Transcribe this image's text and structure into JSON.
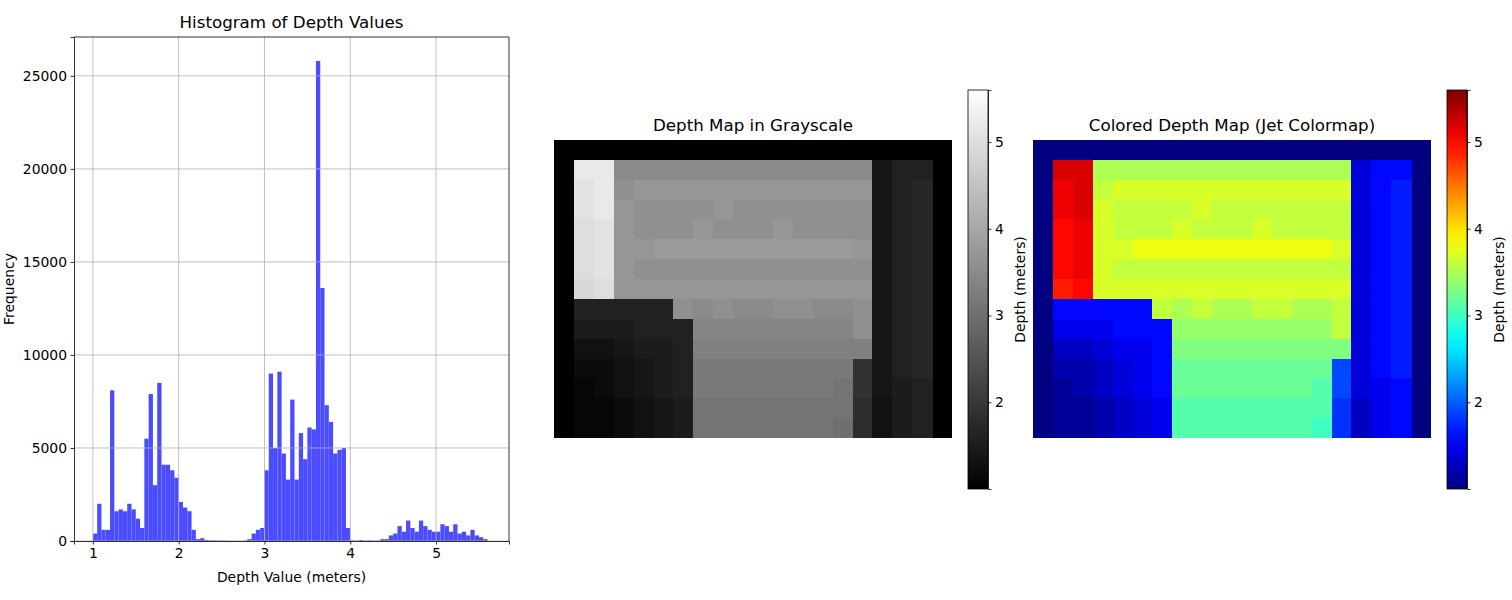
{
  "chart_data": [
    {
      "type": "histogram",
      "title": "Histogram of Depth Values",
      "x_label": "Depth Value (meters)",
      "y_label": "Frequency",
      "bins": [
        1.0,
        1.05,
        1.1,
        1.15,
        1.2,
        1.25,
        1.3,
        1.35,
        1.4,
        1.45,
        1.5,
        1.55,
        1.6,
        1.65,
        1.7,
        1.75,
        1.8,
        1.85,
        1.9,
        1.95,
        2.0,
        2.05,
        2.1,
        2.15,
        2.2,
        2.25,
        2.3,
        2.35,
        2.4,
        2.45,
        2.5,
        2.55,
        2.6,
        2.65,
        2.7,
        2.75,
        2.8,
        2.85,
        2.9,
        2.95,
        3.0,
        3.05,
        3.1,
        3.15,
        3.2,
        3.25,
        3.3,
        3.35,
        3.4,
        3.45,
        3.5,
        3.55,
        3.6,
        3.65,
        3.7,
        3.75,
        3.8,
        3.85,
        3.9,
        3.95,
        4.0,
        4.05,
        4.1,
        4.15,
        4.2,
        4.25,
        4.3,
        4.35,
        4.4,
        4.45,
        4.5,
        4.55,
        4.6,
        4.65,
        4.7,
        4.75,
        4.8,
        4.85,
        4.9,
        4.95,
        5.0,
        5.05,
        5.1,
        5.15,
        5.2,
        5.25,
        5.3,
        5.35,
        5.4,
        5.45,
        5.5,
        5.55,
        5.6
      ],
      "counts": [
        400,
        2000,
        600,
        600,
        8100,
        1600,
        1700,
        1600,
        2000,
        1700,
        1200,
        700,
        5500,
        7900,
        3000,
        8500,
        4100,
        4100,
        3800,
        3400,
        2100,
        1800,
        1600,
        600,
        100,
        150,
        50,
        30,
        30,
        20,
        20,
        10,
        10,
        10,
        0,
        20,
        100,
        400,
        600,
        700,
        3800,
        9000,
        5000,
        9100,
        4700,
        3300,
        7600,
        3300,
        5800,
        4400,
        6100,
        6000,
        25800,
        13600,
        7300,
        6400,
        4700,
        4900,
        5000,
        700,
        30,
        20,
        50,
        20,
        30,
        20,
        20,
        100,
        100,
        300,
        400,
        800,
        500,
        1100,
        700,
        500,
        1100,
        800,
        600,
        500,
        500,
        900,
        800,
        500,
        900,
        400,
        500,
        300,
        600,
        300,
        200,
        100
      ],
      "color": "#4c4cff",
      "xlim": [
        0.78,
        5.85
      ],
      "ylim": [
        0,
        27090
      ],
      "xticks": [
        1,
        2,
        3,
        4,
        5
      ],
      "yticks": [
        0,
        5000,
        10000,
        15000,
        20000,
        25000
      ],
      "grid": true
    },
    {
      "type": "heatmap",
      "title": "Depth Map in Grayscale",
      "color": "gray",
      "tick_labels": false,
      "colorbar_label": "Depth (meters)",
      "colorbar_range": [
        1.0,
        5.6
      ],
      "colorbar_ticks": [
        2,
        3,
        4,
        5
      ],
      "cells": [
        [
          null,
          null,
          null,
          null,
          null,
          null,
          null,
          null,
          null,
          null,
          null,
          null,
          null,
          null,
          null,
          null,
          null,
          null,
          null,
          null
        ],
        [
          null,
          5.2,
          5.2,
          3.5,
          3.5,
          3.5,
          3.5,
          3.5,
          3.5,
          3.5,
          3.5,
          3.5,
          3.5,
          3.5,
          3.5,
          3.5,
          1.4,
          1.6,
          1.6,
          null
        ],
        [
          null,
          5.1,
          5.2,
          3.6,
          3.7,
          3.7,
          3.7,
          3.7,
          3.7,
          3.7,
          3.7,
          3.7,
          3.7,
          3.7,
          3.7,
          3.7,
          1.4,
          1.6,
          1.7,
          null
        ],
        [
          null,
          5.1,
          5.2,
          3.7,
          3.6,
          3.6,
          3.6,
          3.6,
          3.7,
          3.6,
          3.6,
          3.6,
          3.6,
          3.6,
          3.6,
          3.6,
          1.4,
          1.6,
          1.7,
          null
        ],
        [
          null,
          5.0,
          5.1,
          3.7,
          3.6,
          3.6,
          3.6,
          3.7,
          3.6,
          3.6,
          3.6,
          3.7,
          3.6,
          3.6,
          3.6,
          3.6,
          1.4,
          1.6,
          1.7,
          null
        ],
        [
          null,
          5.0,
          5.1,
          3.7,
          3.7,
          3.8,
          3.8,
          3.8,
          3.8,
          3.8,
          3.8,
          3.8,
          3.8,
          3.8,
          3.8,
          3.7,
          1.4,
          1.6,
          1.7,
          null
        ],
        [
          null,
          5.0,
          5.1,
          3.7,
          3.6,
          3.6,
          3.6,
          3.6,
          3.6,
          3.6,
          3.6,
          3.6,
          3.6,
          3.6,
          3.6,
          3.6,
          1.4,
          1.6,
          1.7,
          null
        ],
        [
          null,
          4.9,
          5.0,
          3.7,
          3.7,
          3.7,
          3.7,
          3.7,
          3.7,
          3.7,
          3.7,
          3.7,
          3.7,
          3.7,
          3.7,
          3.7,
          1.4,
          1.6,
          1.7,
          null
        ],
        [
          null,
          1.6,
          1.6,
          1.6,
          1.6,
          1.6,
          3.6,
          3.5,
          3.6,
          3.5,
          3.5,
          3.6,
          3.6,
          3.5,
          3.5,
          3.6,
          1.4,
          1.6,
          1.7,
          null
        ],
        [
          null,
          1.5,
          1.5,
          1.5,
          1.6,
          1.6,
          1.6,
          3.4,
          3.4,
          3.4,
          3.4,
          3.4,
          3.4,
          3.4,
          3.4,
          3.6,
          1.4,
          1.6,
          1.7,
          null
        ],
        [
          null,
          1.3,
          1.3,
          1.4,
          1.5,
          1.5,
          1.6,
          3.3,
          3.3,
          3.3,
          3.3,
          3.3,
          3.3,
          3.3,
          3.3,
          3.3,
          1.4,
          1.6,
          1.7,
          null
        ],
        [
          null,
          1.2,
          1.2,
          1.3,
          1.4,
          1.5,
          1.6,
          3.2,
          3.2,
          3.2,
          3.2,
          3.2,
          3.2,
          3.2,
          3.2,
          1.9,
          1.4,
          1.6,
          1.7,
          null
        ],
        [
          null,
          1.1,
          1.2,
          1.3,
          1.4,
          1.5,
          1.6,
          3.2,
          3.2,
          3.2,
          3.2,
          3.2,
          3.2,
          3.2,
          3.1,
          1.9,
          1.4,
          1.5,
          1.6,
          null
        ],
        [
          null,
          1.1,
          1.1,
          1.2,
          1.3,
          1.4,
          1.5,
          3.1,
          3.1,
          3.1,
          3.1,
          3.1,
          3.1,
          3.1,
          3.1,
          1.8,
          1.3,
          1.5,
          1.6,
          null
        ],
        [
          null,
          1.1,
          1.1,
          1.2,
          1.3,
          1.4,
          1.5,
          3.1,
          3.1,
          3.1,
          3.1,
          3.1,
          3.1,
          3.1,
          3.0,
          1.8,
          1.3,
          1.5,
          1.6,
          null
        ]
      ]
    },
    {
      "type": "heatmap",
      "title": "Colored Depth Map (Jet Colormap)",
      "color": "jet",
      "tick_labels": false,
      "colorbar_label": "Depth (meters)",
      "colorbar_range": [
        1.0,
        5.6
      ],
      "colorbar_ticks": [
        2,
        3,
        4,
        5
      ],
      "cells": [
        [
          null,
          null,
          null,
          null,
          null,
          null,
          null,
          null,
          null,
          null,
          null,
          null,
          null,
          null,
          null,
          null,
          null,
          null,
          null,
          null
        ],
        [
          null,
          5.2,
          5.2,
          3.5,
          3.5,
          3.5,
          3.5,
          3.5,
          3.5,
          3.5,
          3.5,
          3.5,
          3.5,
          3.5,
          3.5,
          3.5,
          1.4,
          1.6,
          1.6,
          null
        ],
        [
          null,
          5.1,
          5.2,
          3.6,
          3.7,
          3.7,
          3.7,
          3.7,
          3.7,
          3.7,
          3.7,
          3.7,
          3.7,
          3.7,
          3.7,
          3.7,
          1.4,
          1.6,
          1.7,
          null
        ],
        [
          null,
          5.1,
          5.2,
          3.7,
          3.6,
          3.6,
          3.6,
          3.6,
          3.7,
          3.6,
          3.6,
          3.6,
          3.6,
          3.6,
          3.6,
          3.6,
          1.4,
          1.6,
          1.7,
          null
        ],
        [
          null,
          5.0,
          5.1,
          3.7,
          3.6,
          3.6,
          3.6,
          3.7,
          3.6,
          3.6,
          3.6,
          3.7,
          3.6,
          3.6,
          3.6,
          3.6,
          1.4,
          1.6,
          1.7,
          null
        ],
        [
          null,
          5.0,
          5.1,
          3.7,
          3.7,
          3.8,
          3.8,
          3.8,
          3.8,
          3.8,
          3.8,
          3.8,
          3.8,
          3.8,
          3.8,
          3.7,
          1.4,
          1.6,
          1.7,
          null
        ],
        [
          null,
          5.0,
          5.1,
          3.7,
          3.6,
          3.6,
          3.6,
          3.6,
          3.6,
          3.6,
          3.6,
          3.6,
          3.6,
          3.6,
          3.6,
          3.6,
          1.4,
          1.6,
          1.7,
          null
        ],
        [
          null,
          4.9,
          5.0,
          3.7,
          3.7,
          3.7,
          3.7,
          3.7,
          3.7,
          3.7,
          3.7,
          3.7,
          3.7,
          3.7,
          3.7,
          3.7,
          1.4,
          1.6,
          1.7,
          null
        ],
        [
          null,
          1.6,
          1.6,
          1.6,
          1.6,
          1.6,
          3.6,
          3.5,
          3.6,
          3.5,
          3.5,
          3.6,
          3.6,
          3.5,
          3.5,
          3.6,
          1.4,
          1.6,
          1.7,
          null
        ],
        [
          null,
          1.5,
          1.5,
          1.5,
          1.6,
          1.6,
          1.6,
          3.4,
          3.4,
          3.4,
          3.4,
          3.4,
          3.4,
          3.4,
          3.4,
          3.6,
          1.4,
          1.6,
          1.7,
          null
        ],
        [
          null,
          1.3,
          1.3,
          1.4,
          1.5,
          1.5,
          1.6,
          3.3,
          3.3,
          3.3,
          3.3,
          3.3,
          3.3,
          3.3,
          3.3,
          3.3,
          1.4,
          1.6,
          1.7,
          null
        ],
        [
          null,
          1.2,
          1.2,
          1.3,
          1.4,
          1.5,
          1.6,
          3.2,
          3.2,
          3.2,
          3.2,
          3.2,
          3.2,
          3.2,
          3.2,
          1.9,
          1.4,
          1.6,
          1.7,
          null
        ],
        [
          null,
          1.1,
          1.2,
          1.3,
          1.4,
          1.5,
          1.6,
          3.2,
          3.2,
          3.2,
          3.2,
          3.2,
          3.2,
          3.2,
          3.1,
          1.9,
          1.4,
          1.5,
          1.6,
          null
        ],
        [
          null,
          1.1,
          1.1,
          1.2,
          1.3,
          1.4,
          1.5,
          3.1,
          3.1,
          3.1,
          3.1,
          3.1,
          3.1,
          3.1,
          3.1,
          1.8,
          1.3,
          1.5,
          1.6,
          null
        ],
        [
          null,
          1.1,
          1.1,
          1.2,
          1.3,
          1.4,
          1.5,
          3.1,
          3.1,
          3.1,
          3.1,
          3.1,
          3.1,
          3.1,
          3.0,
          1.8,
          1.3,
          1.5,
          1.6,
          null
        ]
      ]
    }
  ]
}
